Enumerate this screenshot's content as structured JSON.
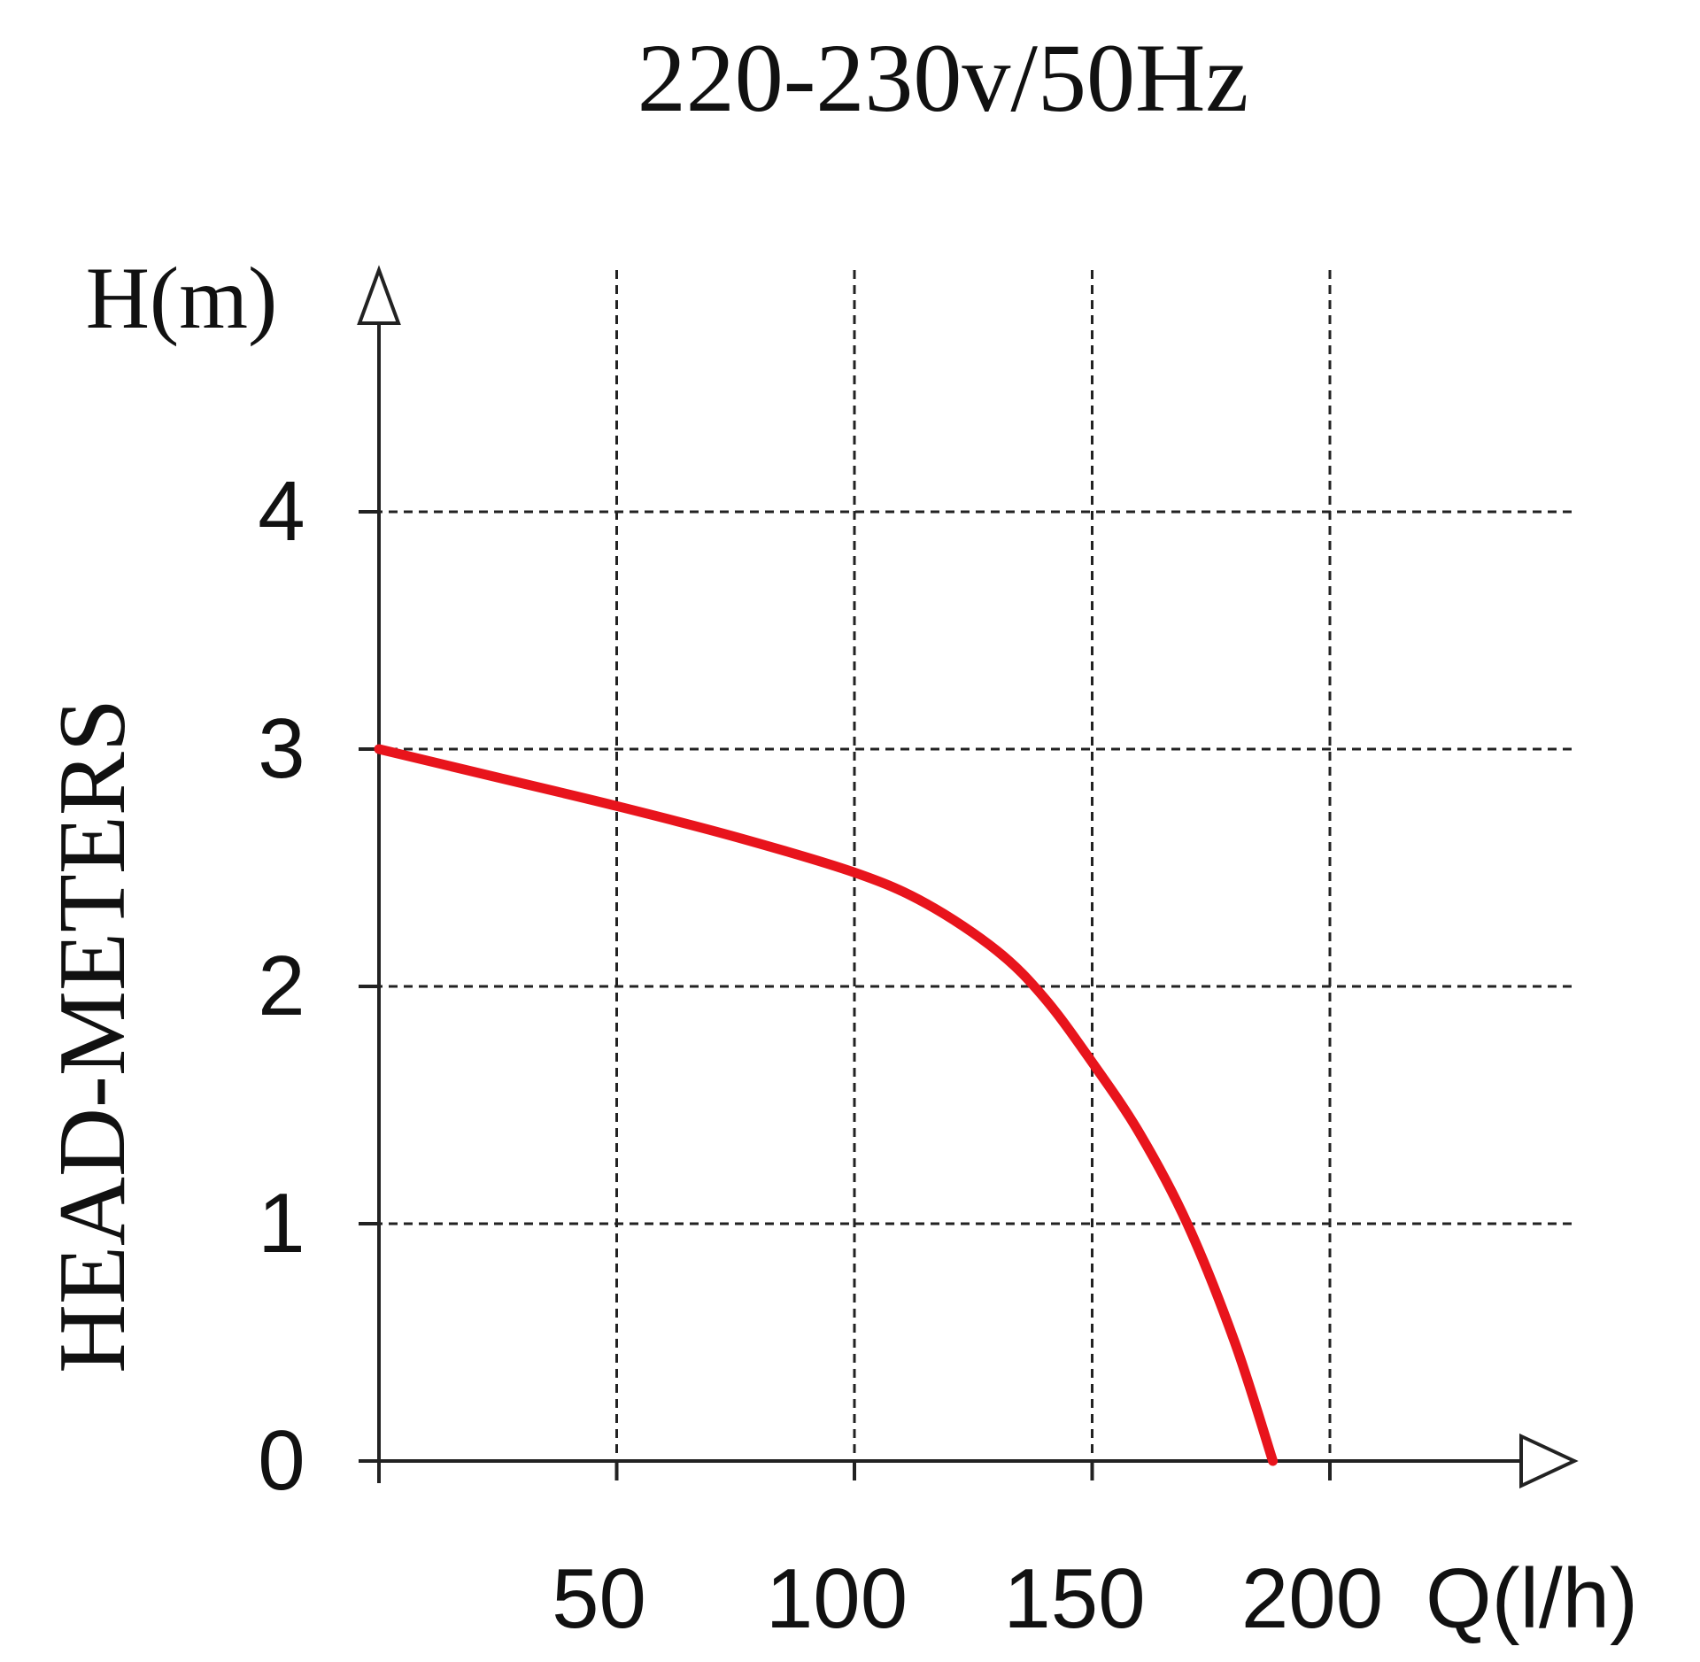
{
  "chart_data": {
    "type": "line",
    "title": "220-230v/50Hz",
    "ylabel": "HEAD-METERS",
    "yunit": "H(m)",
    "xunit": "Q(l/h)",
    "x_ticks": [
      "50",
      "100",
      "150",
      "200"
    ],
    "y_ticks": [
      "0",
      "1",
      "2",
      "3",
      "4"
    ],
    "xlim": [
      0,
      250
    ],
    "ylim": [
      0,
      5
    ],
    "grid": true,
    "curve_color": "#e8141c",
    "series": [
      {
        "x": [
          0,
          25,
          50,
          75,
          100,
          115,
          130,
          140,
          150,
          160,
          170,
          180,
          188
        ],
        "y": [
          3.0,
          2.88,
          2.76,
          2.63,
          2.48,
          2.35,
          2.15,
          1.95,
          1.68,
          1.38,
          1.0,
          0.5,
          0.0
        ]
      }
    ]
  }
}
